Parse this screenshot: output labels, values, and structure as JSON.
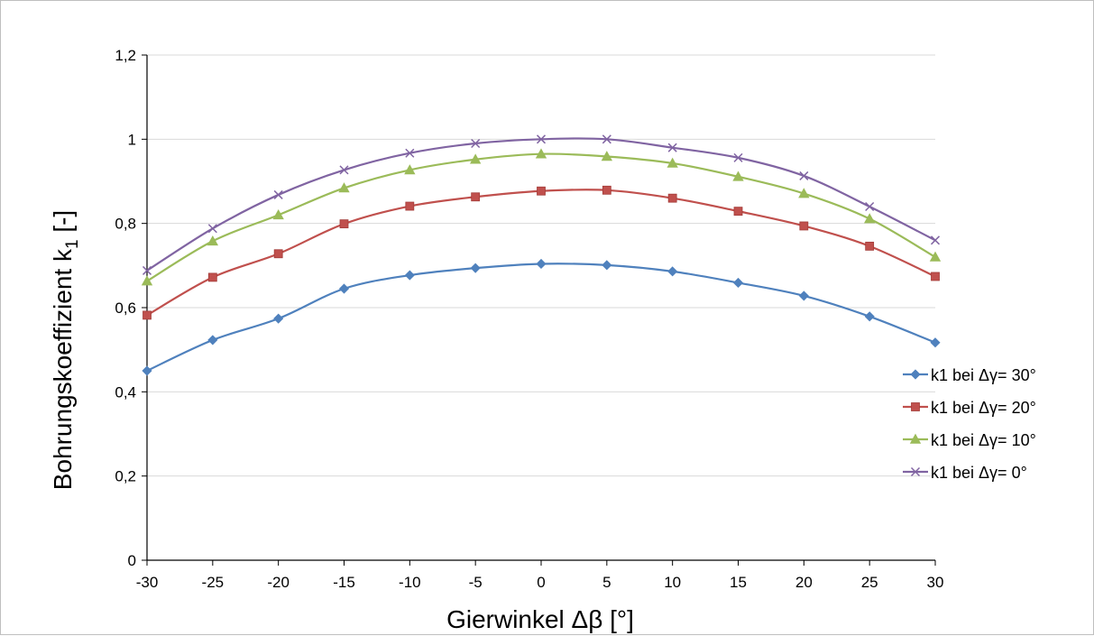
{
  "chart_data": {
    "type": "line",
    "x": [
      -30,
      -25,
      -20,
      -15,
      -10,
      -5,
      0,
      5,
      10,
      15,
      20,
      25,
      30
    ],
    "series": [
      {
        "name": "k1 bei Δγ= 30°",
        "color": "#4f81bd",
        "marker": "diamond",
        "values": [
          0.45,
          0.523,
          0.574,
          0.645,
          0.677,
          0.694,
          0.704,
          0.701,
          0.686,
          0.659,
          0.628,
          0.579,
          0.517
        ]
      },
      {
        "name": "k1 bei Δγ= 20°",
        "color": "#c0504d",
        "marker": "square",
        "values": [
          0.582,
          0.672,
          0.728,
          0.799,
          0.841,
          0.863,
          0.877,
          0.879,
          0.86,
          0.829,
          0.794,
          0.746,
          0.674
        ]
      },
      {
        "name": "k1 bei Δγ= 10°",
        "color": "#9bbb59",
        "marker": "triangle",
        "values": [
          0.663,
          0.758,
          0.82,
          0.884,
          0.927,
          0.952,
          0.965,
          0.959,
          0.943,
          0.911,
          0.871,
          0.811,
          0.72
        ]
      },
      {
        "name": "k1 bei Δγ= 0°",
        "color": "#8064a2",
        "marker": "x",
        "values": [
          0.688,
          0.788,
          0.868,
          0.927,
          0.967,
          0.99,
          1.0,
          1.0,
          0.98,
          0.956,
          0.913,
          0.84,
          0.76
        ]
      }
    ],
    "xlabel": "Gierwinkel Δβ [°]",
    "ylabel_main": "Bohrungskoeffizient k",
    "ylabel_sub": "1",
    "ylabel_suffix": " [-]",
    "xlim": [
      -30,
      30
    ],
    "ylim": [
      0,
      1.2
    ],
    "xticks": [
      -30,
      -25,
      -20,
      -15,
      -10,
      -5,
      0,
      5,
      10,
      15,
      20,
      25,
      30
    ],
    "yticks": [
      0,
      0.2,
      0.4,
      0.6,
      0.8,
      1.0,
      1.2
    ],
    "ytick_labels": [
      "0",
      "0,2",
      "0,4",
      "0,6",
      "0,8",
      "1",
      "1,2"
    ],
    "grid": "horizontal",
    "legend_position": "right"
  }
}
